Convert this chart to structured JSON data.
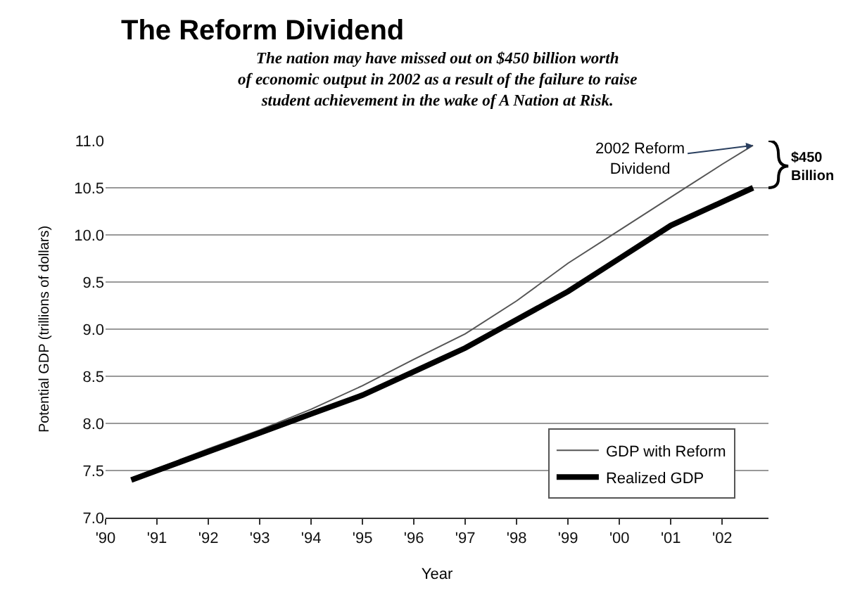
{
  "chart_data": {
    "type": "line",
    "title": "The Reform Dividend",
    "subtitle": "The nation may have missed out on $450 billion worth\nof economic output in 2002 as a result of the failure to raise\nstudent achievement in the wake of A Nation at Risk.",
    "xlabel": "Year",
    "ylabel": "Potential GDP (trillions of dollars)",
    "series": [
      {
        "name": "GDP with Reform",
        "color": "#555555",
        "x": [
          1990.5,
          1991,
          1992,
          1993,
          1994,
          1995,
          1996,
          1997,
          1998,
          1999,
          2000,
          2001,
          2002,
          2002.6
        ],
        "values": [
          7.42,
          7.52,
          7.73,
          7.93,
          8.15,
          8.4,
          8.68,
          8.95,
          9.3,
          9.7,
          10.05,
          10.4,
          10.75,
          10.95
        ]
      },
      {
        "name": "Realized GDP",
        "color": "#000000",
        "x": [
          1990.5,
          1991,
          1992,
          1993,
          1994,
          1995,
          1996,
          1997,
          1998,
          1999,
          2000,
          2001,
          2002,
          2002.6
        ],
        "values": [
          7.4,
          7.5,
          7.7,
          7.9,
          8.1,
          8.3,
          8.55,
          8.8,
          9.1,
          9.4,
          9.75,
          10.1,
          10.35,
          10.5
        ]
      }
    ],
    "xlim": [
      1990,
      2002.9
    ],
    "xticks": [
      {
        "value": 1990,
        "label": "'90"
      },
      {
        "value": 1991,
        "label": "'91"
      },
      {
        "value": 1992,
        "label": "'92"
      },
      {
        "value": 1993,
        "label": "'93"
      },
      {
        "value": 1994,
        "label": "'94"
      },
      {
        "value": 1995,
        "label": "'95"
      },
      {
        "value": 1996,
        "label": "'96"
      },
      {
        "value": 1997,
        "label": "'97"
      },
      {
        "value": 1998,
        "label": "'98"
      },
      {
        "value": 1999,
        "label": "'99"
      },
      {
        "value": 2000,
        "label": "'00"
      },
      {
        "value": 2001,
        "label": "'01"
      },
      {
        "value": 2002,
        "label": "'02"
      }
    ],
    "ylim": [
      7.0,
      11.0
    ],
    "yticks": [
      {
        "value": 7.0,
        "label": "7.0"
      },
      {
        "value": 7.5,
        "label": "7.5"
      },
      {
        "value": 8.0,
        "label": "8.0"
      },
      {
        "value": 8.5,
        "label": "8.5"
      },
      {
        "value": 9.0,
        "label": "9.0"
      },
      {
        "value": 9.5,
        "label": "9.5"
      },
      {
        "value": 10.0,
        "label": "10.0"
      },
      {
        "value": 10.5,
        "label": "10.5"
      },
      {
        "value": 11.0,
        "label": "11.0"
      }
    ],
    "annotations": [
      {
        "text": "2002 Reform\nDividend",
        "x": 2002.6,
        "y": 10.95
      },
      "$450\nBillion"
    ],
    "grid": "y",
    "legend": "bottom right",
    "marker": "none",
    "line_style": "solid"
  }
}
